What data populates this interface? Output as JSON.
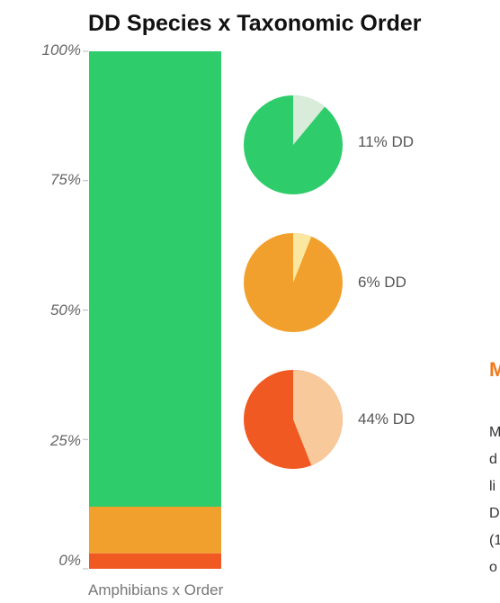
{
  "chart_data": {
    "type": "bar",
    "title": "DD Species x Taxonomic Order",
    "xlabel": "Amphibians x Order",
    "ylabel": "",
    "ylim": [
      0,
      100
    ],
    "yticks": [
      "0%",
      "25%",
      "50%",
      "75%",
      "100%"
    ],
    "stacked_bar": {
      "segments": [
        {
          "value": 3,
          "color": "#f05a22"
        },
        {
          "value": 9,
          "color": "#f2a02d"
        },
        {
          "value": 88,
          "color": "#2ecc6a"
        }
      ]
    },
    "pies": [
      {
        "dd_percent": 11,
        "label": "11% DD",
        "main_color": "#2ecc6a",
        "dd_color": "#d9ecd9"
      },
      {
        "dd_percent": 6,
        "label": "6% DD",
        "main_color": "#f2a02d",
        "dd_color": "#fbe8a0"
      },
      {
        "dd_percent": 44,
        "label": "44% DD",
        "main_color": "#f05a22",
        "dd_color": "#f8c99a"
      }
    ],
    "grid": false,
    "legend": "none"
  },
  "side_panel": {
    "heading": "M",
    "lines": [
      "M",
      "d",
      "li",
      "D",
      "(1",
      "o"
    ]
  }
}
